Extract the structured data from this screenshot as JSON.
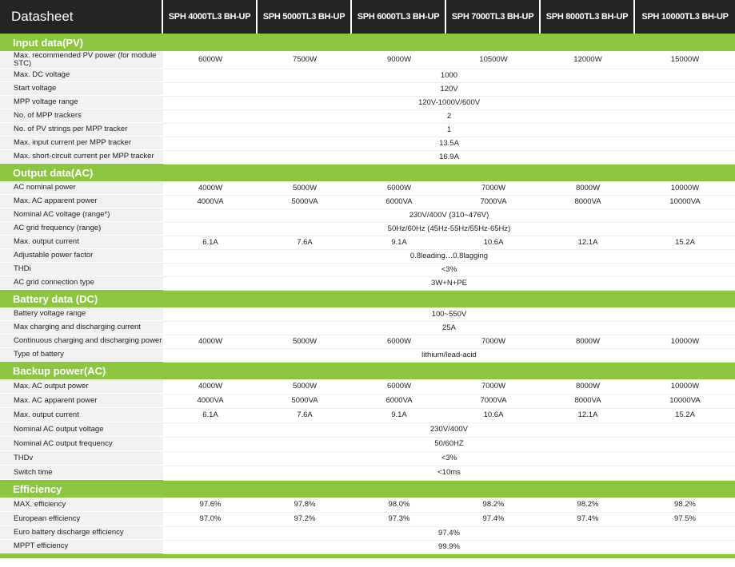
{
  "header": {
    "title": "Datasheet",
    "models": [
      "SPH 4000TL3 BH-UP",
      "SPH 5000TL3 BH-UP",
      "SPH 6000TL3 BH-UP",
      "SPH 7000TL3 BH-UP",
      "SPH 8000TL3 BH-UP",
      "SPH 10000TL3 BH-UP"
    ]
  },
  "sections": [
    {
      "title": "Input data(PV)",
      "rows": [
        {
          "label": "Max. recommended PV power (for module STC)",
          "values": [
            "6000W",
            "7500W",
            "9000W",
            "10500W",
            "12000W",
            "15000W"
          ]
        },
        {
          "label": "Max. DC voltage",
          "value": "1000"
        },
        {
          "label": "Start voltage",
          "value": "120V"
        },
        {
          "label": "MPP voltage range",
          "value": "120V-1000V/600V"
        },
        {
          "label": "No. of MPP trackers",
          "value": "2"
        },
        {
          "label": "No. of PV strings per MPP tracker",
          "value": "1"
        },
        {
          "label": "Max. input current per MPP tracker",
          "value": "13.5A"
        },
        {
          "label": "Max. short-circuit current per MPP tracker",
          "value": "16.9A"
        }
      ]
    },
    {
      "title": "Output data(AC)",
      "rows": [
        {
          "label": "AC nominal power",
          "values": [
            "4000W",
            "5000W",
            "6000W",
            "7000W",
            "8000W",
            "10000W"
          ]
        },
        {
          "label": "Max. AC apparent power",
          "values": [
            "4000VA",
            "5000VA",
            "6000VA",
            "7000VA",
            "8000VA",
            "10000VA"
          ]
        },
        {
          "label": "Nominal AC voltage (range*)",
          "value": "230V/400V (310~476V)"
        },
        {
          "label": "AC grid frequency (range)",
          "value": "50Hz/60Hz (45Hz-55Hz/55Hz-65Hz)"
        },
        {
          "label": "Max. output current",
          "values": [
            "6.1A",
            "7.6A",
            "9.1A",
            "10.6A",
            "12.1A",
            "15.2A"
          ]
        },
        {
          "label": "Adjustable power factor",
          "value": "0.8leading…0.8lagging"
        },
        {
          "label": "THDi",
          "value": "<3%"
        },
        {
          "label": "AC grid connection type",
          "value": "3W+N+PE"
        }
      ]
    },
    {
      "title": "Battery data (DC)",
      "rows": [
        {
          "label": "Battery voltage range",
          "value": "100~550V"
        },
        {
          "label": "Max charging and discharging current",
          "value": "25A"
        },
        {
          "label": "Continuous charging and discharging power",
          "values": [
            "4000W",
            "5000W",
            "6000W",
            "7000W",
            "8000W",
            "10000W"
          ]
        },
        {
          "label": "Type of battery",
          "value": "lithium/lead-acid"
        }
      ]
    },
    {
      "title": "Backup power(AC)",
      "rows": [
        {
          "label": "Max. AC output power",
          "values": [
            "4000W",
            "5000W",
            "6000W",
            "7000W",
            "8000W",
            "10000W"
          ]
        },
        {
          "label": "Max. AC apparent power",
          "values": [
            "4000VA",
            "5000VA",
            "6000VA",
            "7000VA",
            "8000VA",
            "10000VA"
          ]
        },
        {
          "label": "Max. output current",
          "values": [
            "6.1A",
            "7.6A",
            "9.1A",
            "10.6A",
            "12.1A",
            "15.2A"
          ]
        },
        {
          "label": "Nominal AC output voltage",
          "value": "230V/400V"
        },
        {
          "label": "Nominal AC output frequency",
          "value": "50/60HZ"
        },
        {
          "label": "THDv",
          "value": "<3%"
        },
        {
          "label": "Switch time",
          "value": "<10ms"
        }
      ]
    },
    {
      "title": "Efficiency",
      "rows": [
        {
          "label": "MAX. efficiency",
          "values": [
            "97.6%",
            "97.8%",
            "98.0%",
            "98.2%",
            "98.2%",
            "98.2%"
          ]
        },
        {
          "label": "European efficiency",
          "values": [
            "97.0%",
            "97.2%",
            "97.3%",
            "97.4%",
            "97.4%",
            "97.5%"
          ]
        },
        {
          "label": "Euro battery discharge efficiency",
          "value": "97.4%"
        },
        {
          "label": "MPPT efficiency",
          "value": "99.9%"
        }
      ]
    }
  ],
  "colors": {
    "accent": "#8cc63f",
    "header_bg": "#242424",
    "row_bg": "#f1f1f1"
  }
}
